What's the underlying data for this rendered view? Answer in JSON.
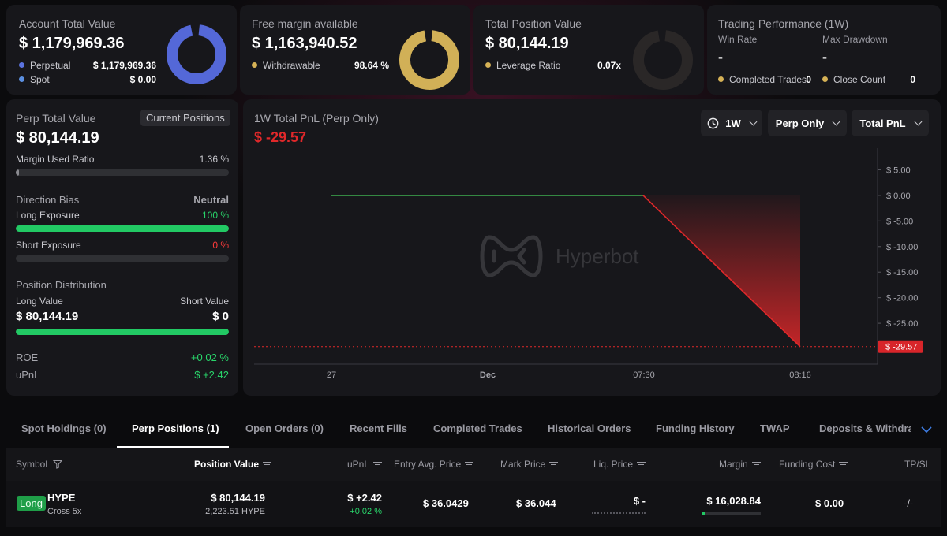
{
  "account": {
    "title": "Account Total Value",
    "value": "$ 1,179,969.36",
    "rows": [
      {
        "label": "Perpetual",
        "value": "$ 1,179,969.36",
        "color": "#5b73e0"
      },
      {
        "label": "Spot",
        "value": "$ 0.00",
        "color": "#5b8fe0"
      }
    ],
    "donut_color": "#5468d8",
    "donut_fraction": 1.0
  },
  "free_margin": {
    "title": "Free margin available",
    "value": "$ 1,163,940.52",
    "row_label": "Withdrawable",
    "row_value": "98.64 %",
    "dot_color": "#d6b256",
    "donut_color": "#d1b057",
    "donut_fraction": 0.9864
  },
  "position_value": {
    "title": "Total Position Value",
    "value": "$ 80,144.19",
    "row_label": "Leverage Ratio",
    "row_value": "0.07x",
    "dot_color": "#d6b256",
    "donut_color": "#2a2727",
    "donut_fraction": 1.0
  },
  "performance": {
    "title": "Trading Performance (1W)",
    "win_rate_label": "Win Rate",
    "win_rate_value": "-",
    "drawdown_label": "Max Drawdown",
    "drawdown_value": "-",
    "completed_label": "Completed Trades",
    "completed_value": "0",
    "close_label": "Close Count",
    "close_value": "0",
    "dot_color": "#d6b256"
  },
  "perp_panel": {
    "title": "Perp Total Value",
    "current_positions_button": "Current Positions",
    "value": "$ 80,144.19",
    "margin_used_label": "Margin Used Ratio",
    "margin_used_value": "1.36 %",
    "margin_used_fraction": 0.0136,
    "direction_label": "Direction Bias",
    "direction_value": "Neutral",
    "long_exposure_label": "Long Exposure",
    "long_exposure_value": "100 %",
    "long_exposure_fraction": 1.0,
    "short_exposure_label": "Short Exposure",
    "short_exposure_value": "0 %",
    "short_exposure_fraction": 0.0,
    "distribution_label": "Position Distribution",
    "long_value_label": "Long Value",
    "short_value_label": "Short Value",
    "long_value": "$ 80,144.19",
    "short_value": "$ 0",
    "long_value_fraction": 1.0,
    "roe_label": "ROE",
    "roe_value": "+0.02 %",
    "upnl_label": "uPnL",
    "upnl_value": "$ +2.42"
  },
  "pnl_chart": {
    "title": "1W Total PnL (Perp Only)",
    "value": "$ -29.57",
    "range_button": "1W",
    "scope_button": "Perp Only",
    "metric_button": "Total PnL",
    "watermark": "Hyperbot"
  },
  "chart_data": {
    "type": "line",
    "x_tick_labels": [
      "27",
      "Dec",
      "07:30",
      "08:16"
    ],
    "y_tick_labels": [
      "$ 5.00",
      "$ 0.00",
      "$ -5.00",
      "$ -10.00",
      "$ -15.00",
      "$ -20.00",
      "$ -25.00"
    ],
    "y_ticks": [
      5,
      0,
      -5,
      -10,
      -15,
      -20,
      -25
    ],
    "ylim": [
      -33,
      8
    ],
    "points": [
      {
        "t": 0.0,
        "y": 0
      },
      {
        "t": 0.665,
        "y": 0
      },
      {
        "t": 1.0,
        "y": -29.57
      }
    ],
    "last_value_label": "$ -29.57",
    "last_value": -29.57,
    "positive_color": "#3fae4f",
    "negative_color": "#e0282a"
  },
  "tabs": [
    {
      "label": "Spot Holdings (0)",
      "active": false
    },
    {
      "label": "Perp Positions (1)",
      "active": true
    },
    {
      "label": "Open Orders (0)",
      "active": false
    },
    {
      "label": "Recent Fills",
      "active": false
    },
    {
      "label": "Completed Trades",
      "active": false
    },
    {
      "label": "Historical Orders",
      "active": false
    },
    {
      "label": "Funding History",
      "active": false
    },
    {
      "label": "TWAP",
      "active": false
    },
    {
      "label": "Deposits & Withdraw",
      "active": false
    }
  ],
  "table": {
    "headers": {
      "symbol": "Symbol",
      "position_value": "Position Value",
      "upnl": "uPnL",
      "entry": "Entry Avg. Price",
      "mark": "Mark Price",
      "liq": "Liq. Price",
      "margin": "Margin",
      "funding": "Funding Cost",
      "tpsl": "TP/SL"
    },
    "row": {
      "side": "Long",
      "coin": "HYPE",
      "mode": "Cross 5x",
      "position_value": "$ 80,144.19",
      "position_size": "2,223.51 HYPE",
      "upnl": "$ +2.42",
      "upnl_pct": "+0.02 %",
      "entry": "$ 36.0429",
      "mark": "$ 36.044",
      "liq": "$ -",
      "margin": "$ 16,028.84",
      "funding": "$ 0.00",
      "tpsl": "-/-"
    }
  }
}
